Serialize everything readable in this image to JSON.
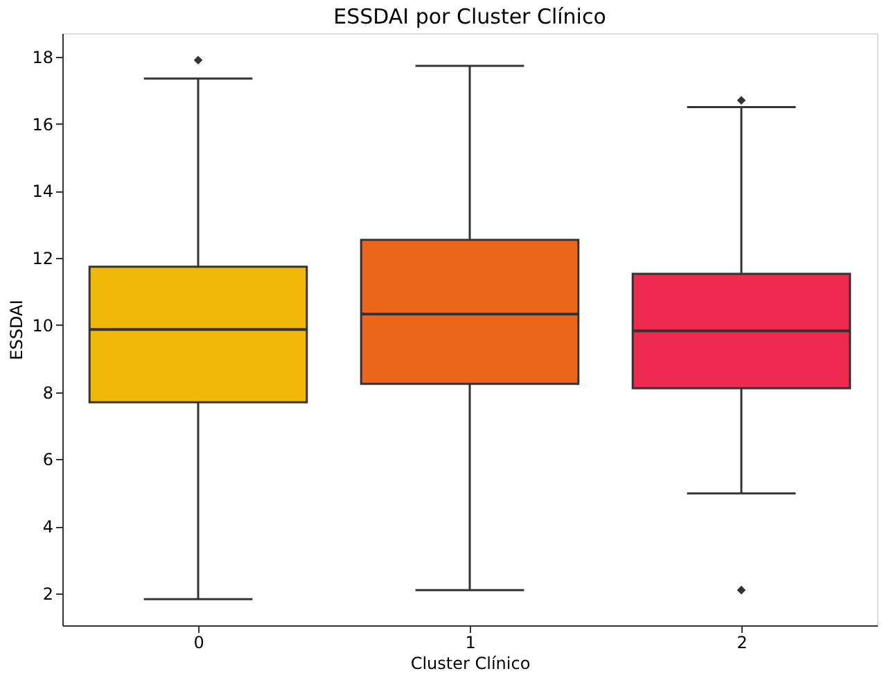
{
  "chart_data": {
    "type": "box",
    "title": "ESSDAI por Cluster Clínico",
    "xlabel": "Cluster Clínico",
    "ylabel": "ESSDAI",
    "categories": [
      "0",
      "1",
      "2"
    ],
    "colors": [
      "#f0b806",
      "#ec661c",
      "#ee2a50"
    ],
    "boxes": [
      {
        "low": 1.83,
        "q1": 7.7,
        "median": 9.87,
        "q3": 11.74,
        "high": 17.35,
        "outliers": [
          17.9
        ]
      },
      {
        "low": 2.1,
        "q1": 8.25,
        "median": 10.33,
        "q3": 12.54,
        "high": 17.73
      },
      {
        "low": 4.98,
        "q1": 8.12,
        "median": 9.83,
        "q3": 11.53,
        "high": 16.5,
        "outliers": [
          16.7,
          2.1
        ]
      }
    ],
    "ylim": [
      1.05,
      18.7
    ],
    "yticks": [
      2,
      4,
      6,
      8,
      10,
      12,
      14,
      16,
      18
    ],
    "grid": false
  }
}
